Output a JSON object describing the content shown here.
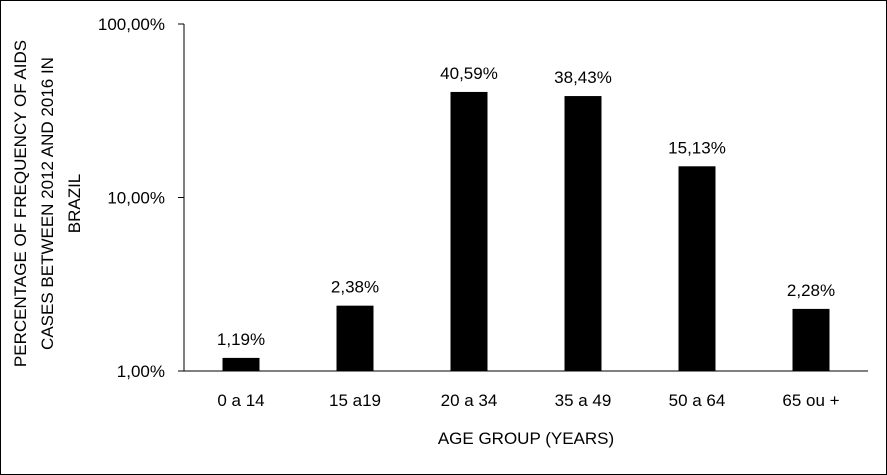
{
  "chart_data": {
    "type": "bar",
    "title": "",
    "xlabel": "AGE GROUP (YEARS)",
    "ylabel_lines": [
      "PERCENTAGE OF FREQUENCY OF AIDS",
      "CASES  BETWEEN 2012 AND 2016 IN",
      "BRAZIL"
    ],
    "yscale": "log",
    "ylim": [
      1,
      100
    ],
    "yticks": [
      1,
      10,
      100
    ],
    "ytick_labels": [
      "1,00%",
      "10,00%",
      "100,00%"
    ],
    "categories": [
      "0 a 14",
      "15 a19",
      "20 a 34",
      "35 a 49",
      "50 a 64",
      "65 ou +"
    ],
    "values": [
      1.19,
      2.38,
      40.59,
      38.43,
      15.13,
      2.28
    ],
    "data_labels": [
      "1,19%",
      "2,38%",
      "40,59%",
      "38,43%",
      "15,13%",
      "2,28%"
    ],
    "bar_color": "#000000",
    "grid": false,
    "legend": "none"
  }
}
